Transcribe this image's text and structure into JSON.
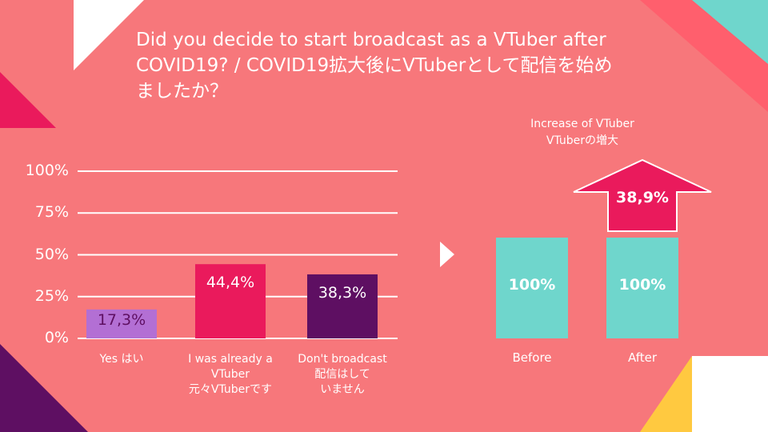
{
  "title": "Did you decide to start broadcast as a VTuber after COVID19? / COVID19拡大後にVTuberとして配信を始めましたか？",
  "chart_data": [
    {
      "type": "bar",
      "categories": [
        "Yes はい",
        "I was already a\nVTuber\n元々VTuberです",
        "Don't broadcast\n配信はして\nいません"
      ],
      "values": [
        17.3,
        44.4,
        38.3
      ],
      "value_labels": [
        "17,3%",
        "44,4%",
        "38,3%"
      ],
      "colors": [
        "#b36fd4",
        "#ea1a5c",
        "#5e0f62"
      ],
      "ylim": [
        0,
        100
      ],
      "yticks": [
        {
          "value": 0,
          "label": "0%"
        },
        {
          "value": 25,
          "label": "25%"
        },
        {
          "value": 50,
          "label": "50%"
        },
        {
          "value": 75,
          "label": "75%"
        },
        {
          "value": 100,
          "label": "100%"
        }
      ],
      "grid": true
    },
    {
      "type": "bar",
      "categories": [
        "Before",
        "After"
      ],
      "values": [
        100,
        100
      ],
      "value_labels": [
        "100%",
        "100%"
      ],
      "color": "#6fd6cc",
      "increase": {
        "value": 38.9,
        "label": "38,9%",
        "annotation": "Increase of VTuber\nVTuberの増大",
        "color": "#ea1a5c"
      }
    }
  ]
}
